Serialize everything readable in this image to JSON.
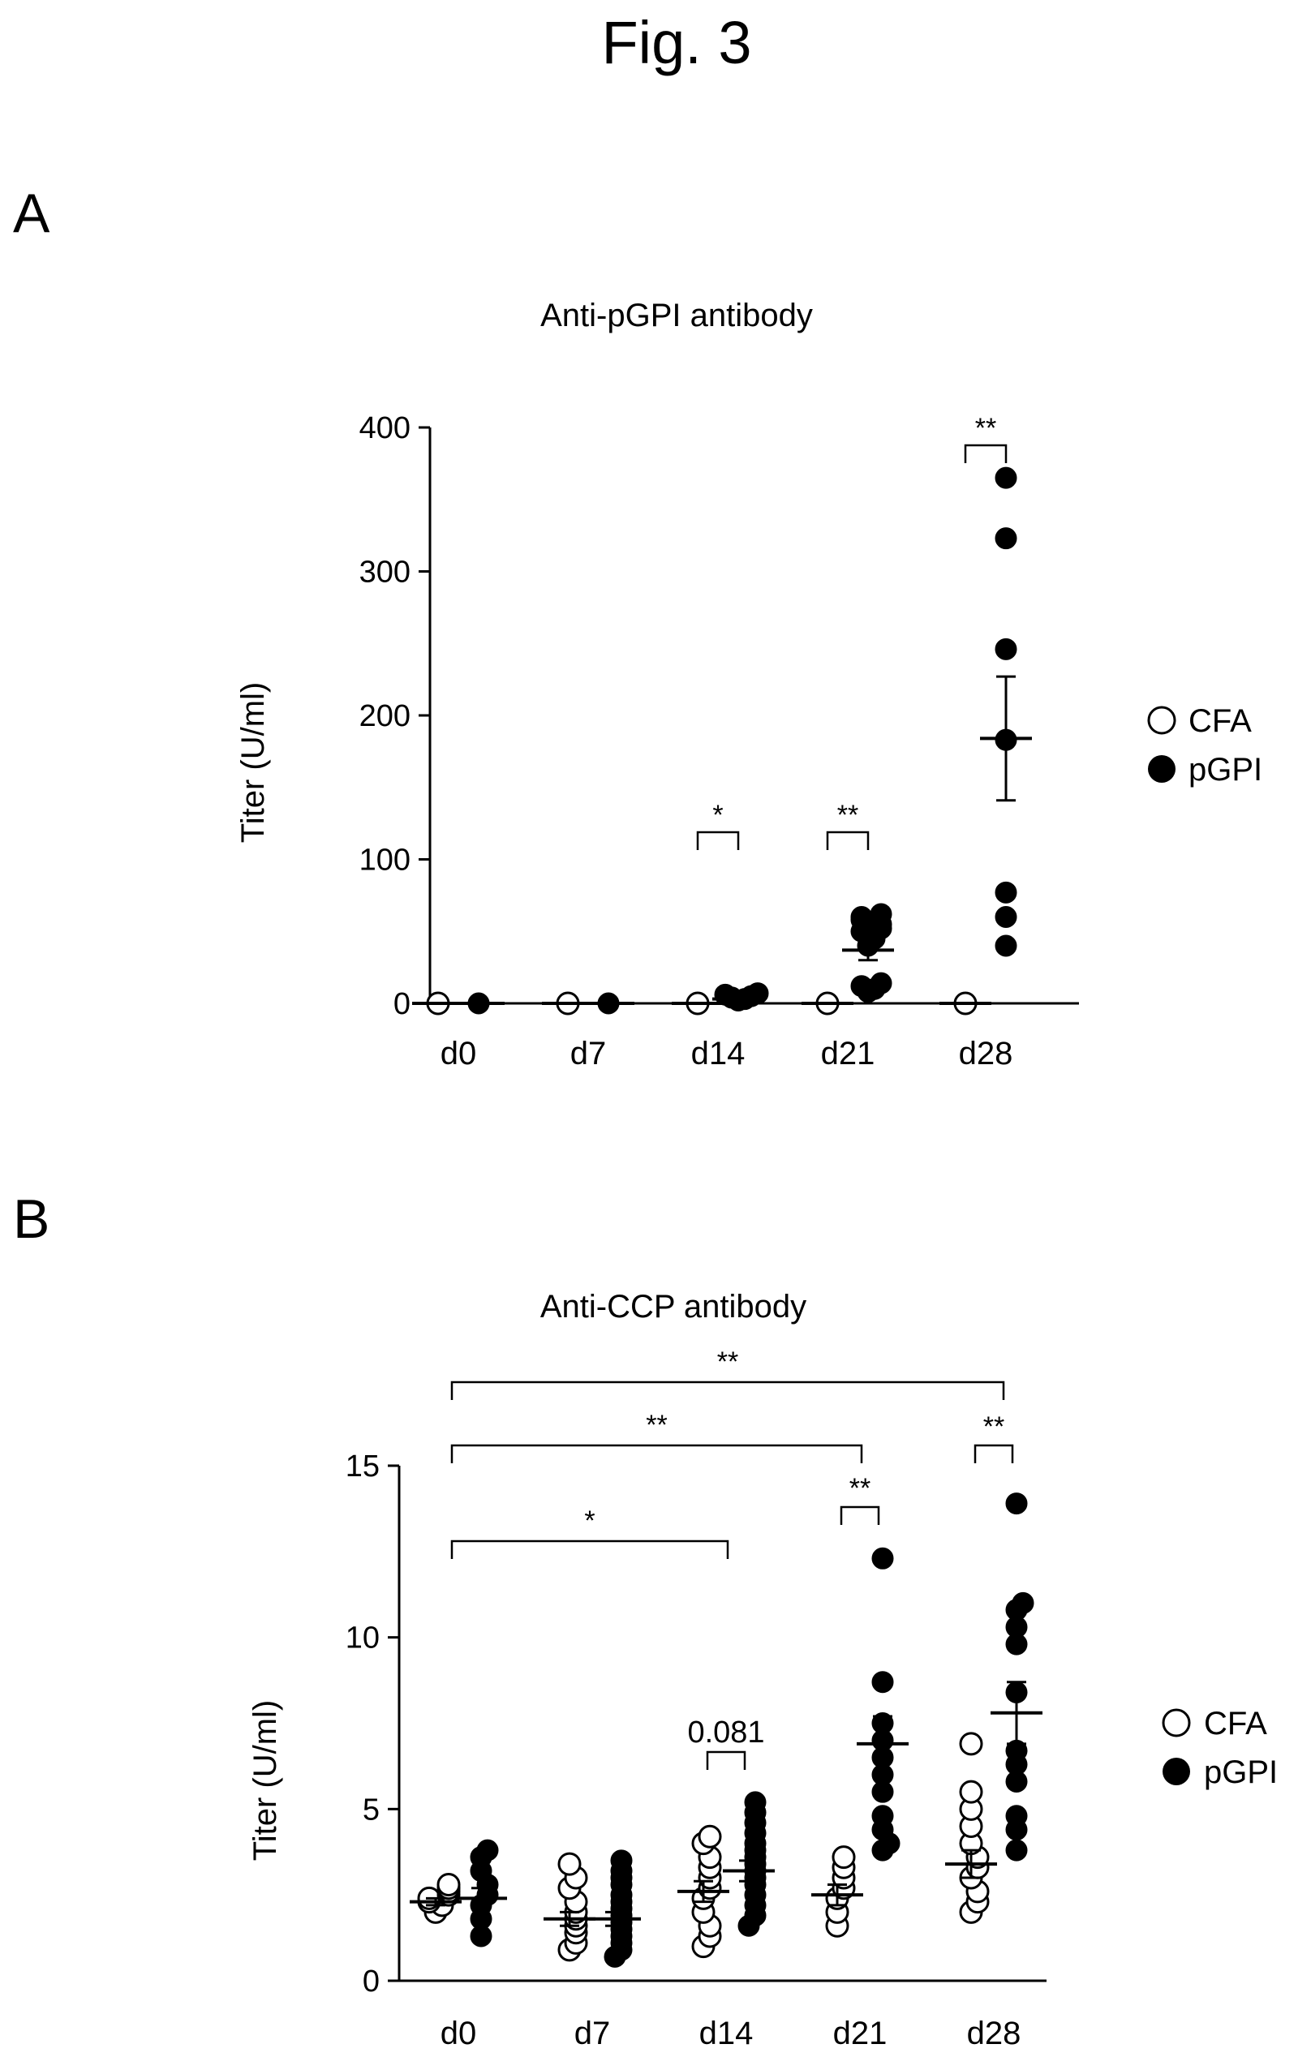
{
  "figure_title": "Fig. 3",
  "panels": [
    {
      "letter": "A"
    },
    {
      "letter": "B"
    }
  ],
  "legend": [
    {
      "label": "CFA",
      "marker": "open-circle"
    },
    {
      "label": "pGPI",
      "marker": "filled-circle"
    }
  ],
  "chart_data": [
    {
      "type": "scatter",
      "title": "Anti-pGPI antibody",
      "ylabel": "Titer (U/ml)",
      "xlabel": "",
      "categories": [
        "d0",
        "d7",
        "d14",
        "d21",
        "d28"
      ],
      "ylim": [
        0,
        400
      ],
      "yticks": [
        0,
        100,
        200,
        300,
        400
      ],
      "grid": false,
      "legend_position": "right",
      "series": [
        {
          "name": "CFA",
          "marker": "open",
          "points": [
            [
              0
            ],
            [
              0
            ],
            [
              0
            ],
            [
              0
            ],
            [
              0
            ]
          ],
          "mean": [
            0,
            0,
            0,
            0,
            0
          ],
          "sem": [
            0,
            0,
            0,
            0,
            0
          ]
        },
        {
          "name": "pGPI",
          "marker": "filled",
          "points": [
            [
              0
            ],
            [
              0
            ],
            [
              2,
              3,
              4,
              5,
              6,
              7
            ],
            [
              8,
              10,
              12,
              14,
              40,
              45,
              48,
              50,
              52,
              55,
              58,
              60,
              62
            ],
            [
              40,
              60,
              77,
              183,
              246,
              323,
              365
            ]
          ],
          "mean": [
            0,
            0,
            3,
            37,
            184
          ],
          "sem": [
            0,
            0,
            1,
            7,
            43
          ]
        }
      ],
      "significance": [
        {
          "from": "d14",
          "to": "d14",
          "label": "*",
          "type": "pair"
        },
        {
          "from": "d21",
          "to": "d21",
          "label": "**",
          "type": "pair"
        },
        {
          "from": "d28",
          "to": "d28",
          "label": "**",
          "type": "pair"
        }
      ]
    },
    {
      "type": "scatter",
      "title": "Anti-CCP antibody",
      "ylabel": "Titer (U/ml)",
      "xlabel": "",
      "categories": [
        "d0",
        "d7",
        "d14",
        "d21",
        "d28"
      ],
      "ylim": [
        0,
        15
      ],
      "yticks": [
        0,
        5,
        10,
        15
      ],
      "grid": false,
      "legend_position": "right",
      "series": [
        {
          "name": "CFA",
          "marker": "open",
          "points": [
            [
              2.0,
              2.2,
              2.3,
              2.4,
              2.5,
              2.6,
              2.7,
              2.8
            ],
            [
              0.9,
              1.1,
              1.4,
              1.6,
              1.8,
              2.0,
              2.3,
              2.7,
              3.0,
              3.4
            ],
            [
              1.0,
              1.3,
              1.6,
              2.0,
              2.4,
              2.7,
              3.0,
              3.3,
              3.6,
              4.0,
              4.2
            ],
            [
              1.6,
              2.0,
              2.4,
              2.7,
              3.0,
              3.3,
              3.6
            ],
            [
              2.0,
              2.3,
              2.6,
              3.0,
              3.3,
              3.6,
              4.0,
              4.5,
              5.0,
              5.5,
              6.9
            ]
          ],
          "mean": [
            2.3,
            1.8,
            2.6,
            2.5,
            3.4
          ],
          "sem": [
            0.1,
            0.2,
            0.3,
            0.3,
            0.4
          ]
        },
        {
          "name": "pGPI",
          "marker": "filled",
          "points": [
            [
              1.3,
              1.8,
              2.2,
              2.5,
              2.8,
              3.2,
              3.6,
              3.8
            ],
            [
              0.7,
              0.9,
              1.1,
              1.3,
              1.5,
              1.7,
              1.9,
              2.1,
              2.3,
              2.5,
              2.8,
              3.0,
              3.2,
              3.5
            ],
            [
              1.6,
              1.9,
              2.2,
              2.5,
              2.8,
              3.0,
              3.2,
              3.4,
              3.6,
              3.8,
              4.0,
              4.3,
              4.6,
              4.9,
              5.2
            ],
            [
              3.8,
              4.0,
              4.4,
              4.8,
              5.5,
              6.0,
              6.5,
              7.0,
              7.5,
              8.7,
              12.3
            ],
            [
              3.8,
              4.4,
              4.8,
              5.8,
              6.3,
              6.7,
              8.4,
              9.8,
              10.3,
              10.8,
              11.0,
              13.9
            ]
          ],
          "mean": [
            2.4,
            1.8,
            3.2,
            6.9,
            7.8
          ],
          "sem": [
            0.3,
            0.2,
            0.3,
            0.8,
            0.9
          ]
        }
      ],
      "significance": [
        {
          "from": "d0",
          "to": "d28",
          "label": "**",
          "type": "span"
        },
        {
          "from": "d0",
          "to": "d21",
          "label": "**",
          "type": "span"
        },
        {
          "from": "d0",
          "to": "d14",
          "label": "*",
          "type": "span"
        },
        {
          "from": "d14",
          "to": "d14",
          "label": "0.081",
          "type": "pair"
        },
        {
          "from": "d21",
          "to": "d21",
          "label": "**",
          "type": "pair"
        },
        {
          "from": "d28",
          "to": "d28",
          "label": "**",
          "type": "pair"
        }
      ]
    }
  ]
}
